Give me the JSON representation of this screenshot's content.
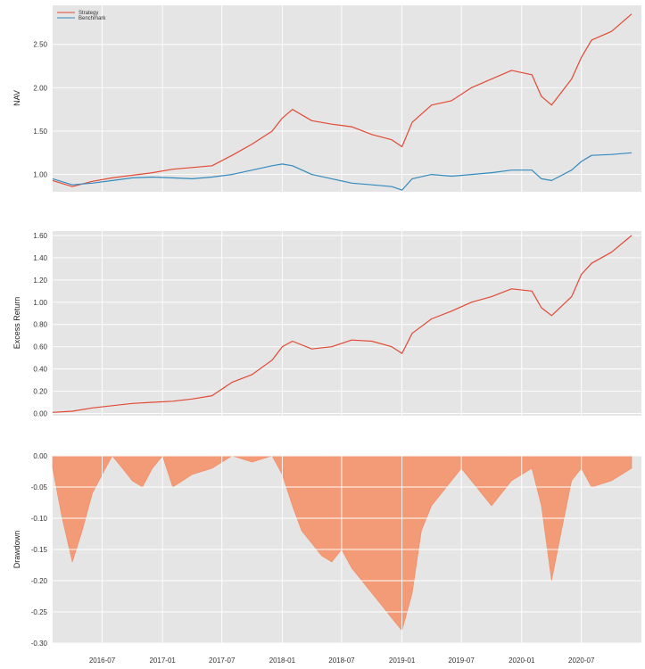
{
  "chart_data": [
    {
      "type": "line",
      "ylabel": "NAV",
      "ylim": [
        0.8,
        2.95
      ],
      "yticks": [
        "1.00",
        "1.50",
        "2.00",
        "2.50"
      ],
      "grid": true,
      "legend": "top-left",
      "x": [
        "2016-02",
        "2016-04",
        "2016-06",
        "2016-08",
        "2016-10",
        "2016-12",
        "2017-02",
        "2017-04",
        "2017-06",
        "2017-08",
        "2017-10",
        "2017-12",
        "2018-01",
        "2018-02",
        "2018-04",
        "2018-06",
        "2018-08",
        "2018-10",
        "2018-12",
        "2019-01",
        "2019-02",
        "2019-04",
        "2019-06",
        "2019-08",
        "2019-10",
        "2019-12",
        "2020-02",
        "2020-03",
        "2020-04",
        "2020-06",
        "2020-07",
        "2020-08",
        "2020-10",
        "2020-12"
      ],
      "series": [
        {
          "name": "Strategy",
          "color": "#e24a33",
          "values": [
            0.93,
            0.86,
            0.92,
            0.96,
            0.99,
            1.02,
            1.06,
            1.08,
            1.1,
            1.22,
            1.35,
            1.5,
            1.65,
            1.75,
            1.62,
            1.58,
            1.55,
            1.46,
            1.4,
            1.32,
            1.6,
            1.8,
            1.85,
            2.0,
            2.1,
            2.2,
            2.15,
            1.9,
            1.8,
            2.1,
            2.35,
            2.55,
            2.65,
            2.85
          ]
        },
        {
          "name": "Benchmark",
          "color": "#348abd",
          "values": [
            0.95,
            0.88,
            0.9,
            0.93,
            0.96,
            0.97,
            0.96,
            0.95,
            0.97,
            1.0,
            1.05,
            1.1,
            1.12,
            1.1,
            1.0,
            0.95,
            0.9,
            0.88,
            0.86,
            0.82,
            0.95,
            1.0,
            0.98,
            1.0,
            1.02,
            1.05,
            1.05,
            0.95,
            0.93,
            1.05,
            1.15,
            1.22,
            1.23,
            1.25
          ]
        }
      ]
    },
    {
      "type": "line",
      "ylabel": "Excess Return",
      "ylim": [
        -0.02,
        1.64
      ],
      "yticks": [
        "0.00",
        "0.20",
        "0.40",
        "0.60",
        "0.80",
        "1.00",
        "1.20",
        "1.40",
        "1.60"
      ],
      "grid": true,
      "x": [
        "2016-02",
        "2016-04",
        "2016-06",
        "2016-08",
        "2016-10",
        "2016-12",
        "2017-02",
        "2017-04",
        "2017-06",
        "2017-08",
        "2017-10",
        "2017-12",
        "2018-01",
        "2018-02",
        "2018-04",
        "2018-06",
        "2018-08",
        "2018-10",
        "2018-12",
        "2019-01",
        "2019-02",
        "2019-04",
        "2019-06",
        "2019-08",
        "2019-10",
        "2019-12",
        "2020-02",
        "2020-03",
        "2020-04",
        "2020-06",
        "2020-07",
        "2020-08",
        "2020-10",
        "2020-12"
      ],
      "series": [
        {
          "color": "#e24a33",
          "values": [
            0.01,
            0.02,
            0.05,
            0.07,
            0.09,
            0.1,
            0.11,
            0.13,
            0.16,
            0.28,
            0.35,
            0.48,
            0.6,
            0.65,
            0.58,
            0.6,
            0.66,
            0.65,
            0.6,
            0.54,
            0.72,
            0.85,
            0.92,
            1.0,
            1.05,
            1.12,
            1.1,
            0.95,
            0.88,
            1.05,
            1.25,
            1.35,
            1.45,
            1.6
          ]
        }
      ]
    },
    {
      "type": "area",
      "ylabel": "Drawdown",
      "ylim": [
        -0.3,
        0.0
      ],
      "yticks": [
        "0.00",
        "-0.05",
        "-0.10",
        "-0.15",
        "-0.20",
        "-0.25",
        "-0.30"
      ],
      "grid": true,
      "color": "#f39a76",
      "x": [
        "2016-02",
        "2016-03",
        "2016-04",
        "2016-05",
        "2016-06",
        "2016-07",
        "2016-08",
        "2016-09",
        "2016-10",
        "2016-11",
        "2016-12",
        "2017-01",
        "2017-02",
        "2017-04",
        "2017-06",
        "2017-08",
        "2017-10",
        "2017-12",
        "2018-01",
        "2018-02",
        "2018-03",
        "2018-04",
        "2018-05",
        "2018-06",
        "2018-07",
        "2018-08",
        "2018-09",
        "2018-10",
        "2018-11",
        "2018-12",
        "2019-01",
        "2019-02",
        "2019-03",
        "2019-04",
        "2019-06",
        "2019-07",
        "2019-08",
        "2019-10",
        "2019-12",
        "2020-01",
        "2020-02",
        "2020-03",
        "2020-04",
        "2020-05",
        "2020-06",
        "2020-07",
        "2020-08",
        "2020-10",
        "2020-12"
      ],
      "values": [
        -0.02,
        -0.1,
        -0.17,
        -0.12,
        -0.06,
        -0.03,
        0,
        -0.02,
        -0.04,
        -0.05,
        -0.02,
        0,
        -0.05,
        -0.03,
        -0.02,
        0,
        -0.01,
        0,
        -0.03,
        -0.08,
        -0.12,
        -0.14,
        -0.16,
        -0.17,
        -0.15,
        -0.18,
        -0.2,
        -0.22,
        -0.24,
        -0.26,
        -0.28,
        -0.22,
        -0.12,
        -0.08,
        -0.04,
        -0.02,
        -0.04,
        -0.08,
        -0.04,
        -0.03,
        -0.02,
        -0.08,
        -0.2,
        -0.12,
        -0.04,
        -0.02,
        -0.05,
        -0.04,
        -0.02
      ]
    }
  ],
  "x_ticks": [
    "2016-07",
    "2017-01",
    "2017-07",
    "2018-01",
    "2018-07",
    "2019-01",
    "2019-07",
    "2020-01",
    "2020-07"
  ]
}
